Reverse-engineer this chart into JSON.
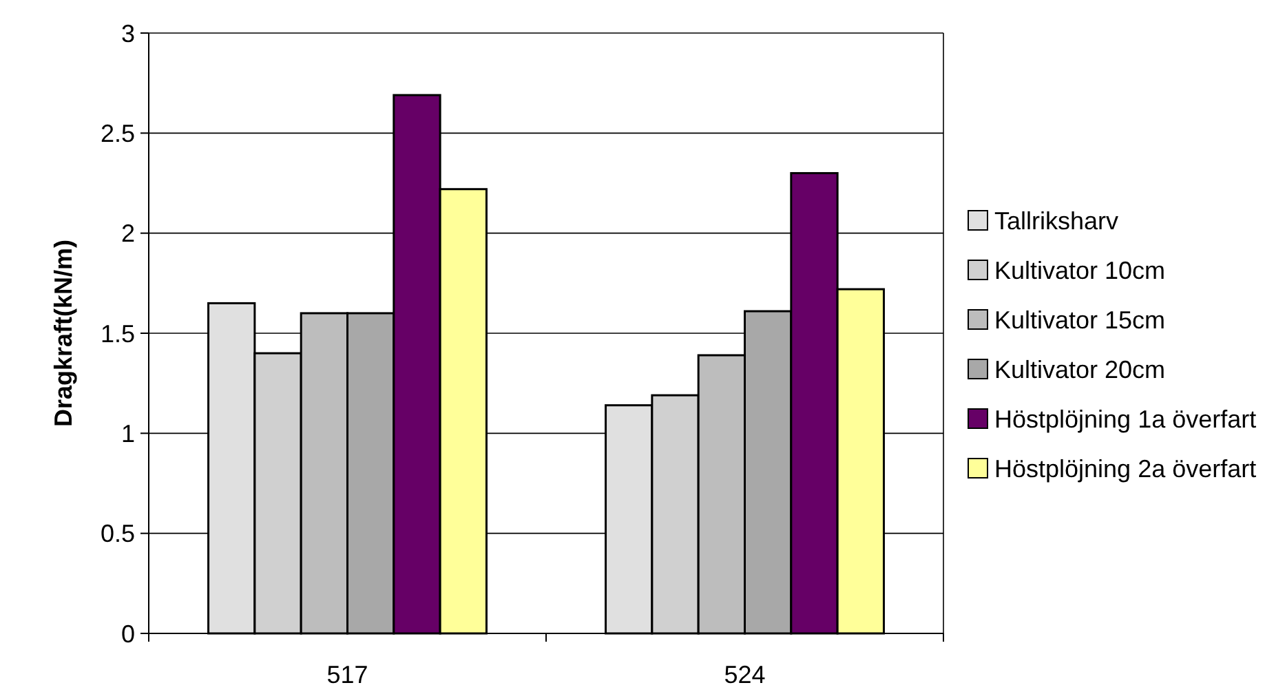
{
  "chart_data": {
    "type": "bar",
    "ylabel": "Dragkraft(kN/m)",
    "categories": [
      "517",
      "524"
    ],
    "series": [
      {
        "name": "Tallriksharv",
        "color": "#e0e0e0",
        "values": [
          1.65,
          1.14
        ]
      },
      {
        "name": "Kultivator 10cm",
        "color": "#d0d0d0",
        "values": [
          1.4,
          1.19
        ]
      },
      {
        "name": "Kultivator 15cm",
        "color": "#bdbdbd",
        "values": [
          1.6,
          1.39
        ]
      },
      {
        "name": "Kultivator 20cm",
        "color": "#a8a8a8",
        "values": [
          1.6,
          1.61
        ]
      },
      {
        "name": "Höstplöjning 1a överfart",
        "color": "#660066",
        "values": [
          2.69,
          2.3
        ]
      },
      {
        "name": "Höstplöjning 2a överfart",
        "color": "#ffff99",
        "values": [
          2.22,
          1.72
        ]
      }
    ],
    "ylim": [
      0,
      3
    ],
    "yticks": [
      0,
      0.5,
      1,
      1.5,
      2,
      2.5,
      3
    ],
    "grid": "y",
    "legend": "right"
  }
}
